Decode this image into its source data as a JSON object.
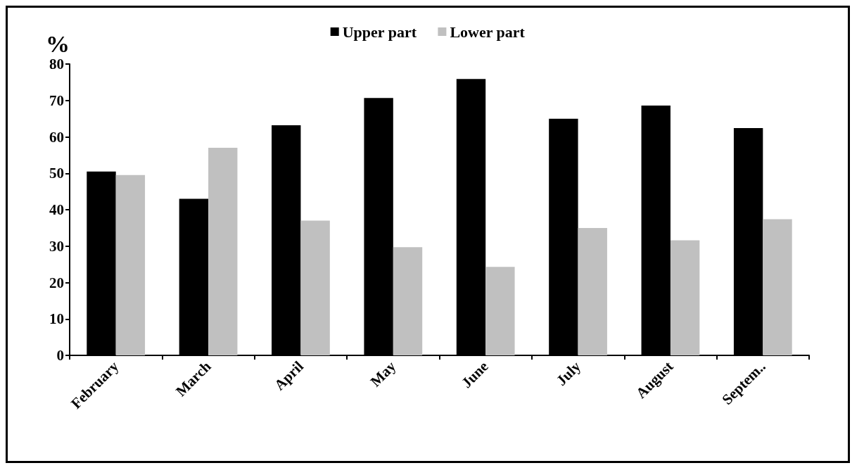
{
  "chart_data": {
    "type": "bar",
    "ylabel": "%",
    "categories": [
      "February",
      "March",
      "April",
      "May",
      "June",
      "July",
      "August",
      "Septem.."
    ],
    "series": [
      {
        "name": "Upper part",
        "color": "#000000",
        "values": [
          50.5,
          43,
          63.2,
          70.7,
          75.9,
          65,
          68.6,
          62.4
        ]
      },
      {
        "name": "Lower part",
        "color": "#c0c0c0",
        "values": [
          49.5,
          57,
          37,
          29.7,
          24.3,
          35,
          31.6,
          37.4
        ]
      }
    ],
    "ylim": [
      0,
      80
    ],
    "yticks": [
      0,
      10,
      20,
      30,
      40,
      50,
      60,
      70,
      80
    ],
    "grid": false,
    "legend": "top"
  }
}
